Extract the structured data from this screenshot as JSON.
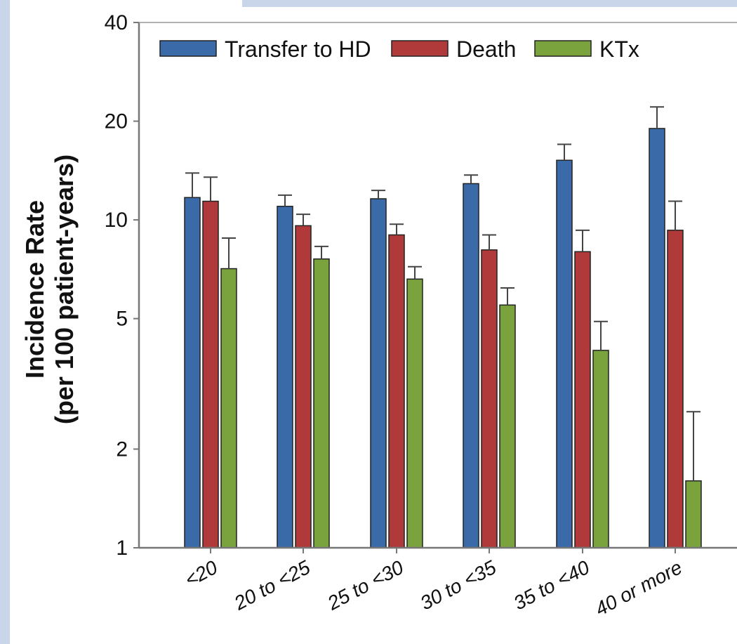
{
  "chart_data": {
    "type": "bar",
    "ylabel_line1": "Incidence Rate",
    "ylabel_line2": "(per 100 patient-years)",
    "yscale": "log",
    "ylim": [
      1,
      40
    ],
    "yticks": [
      1,
      2,
      5,
      10,
      20,
      40
    ],
    "categories": [
      "<20",
      "20 to <25",
      "25 to <30",
      "30 to <35",
      "35 to <40",
      "40 or more"
    ],
    "legend_position": "top",
    "series": [
      {
        "name": "Transfer to HD",
        "color": "#3b6aa8",
        "values": [
          11.7,
          11.0,
          11.6,
          12.9,
          15.2,
          19.0
        ],
        "upper": [
          13.9,
          11.9,
          12.3,
          13.7,
          17.0,
          22.1
        ]
      },
      {
        "name": "Death",
        "color": "#b03a3a",
        "values": [
          11.4,
          9.6,
          9.0,
          8.1,
          8.0,
          9.3
        ],
        "upper": [
          13.5,
          10.4,
          9.7,
          9.0,
          9.3,
          11.4
        ]
      },
      {
        "name": "KTx",
        "color": "#7aa33e",
        "values": [
          7.1,
          7.6,
          6.6,
          5.5,
          4.0,
          1.6
        ],
        "upper": [
          8.8,
          8.3,
          7.2,
          6.2,
          4.9,
          2.6
        ]
      }
    ]
  }
}
